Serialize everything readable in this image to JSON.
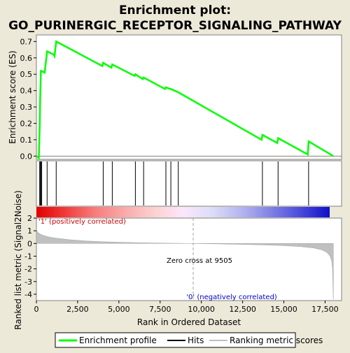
{
  "title_line1": "Enrichment plot:",
  "title_line2": "GO_PURINERGIC_RECEPTOR_SIGNALING_PATHWAY",
  "colors": {
    "background": "#ece9d8",
    "enrichment_line": "#00ff00",
    "hits": "#000000",
    "metric_fill": "#c0c0c0",
    "pos_label": "#cc0000",
    "neg_label": "#0000cc"
  },
  "chart_data": [
    {
      "type": "line",
      "name": "enrichment-profile",
      "ylabel": "Enrichment score (ES)",
      "ylim": [
        -0.02,
        0.74
      ],
      "xlim": [
        0,
        18500
      ],
      "yticks": [
        "0.0",
        "0.1",
        "0.2",
        "0.3",
        "0.4",
        "0.5",
        "0.6",
        "0.7"
      ],
      "ytick_values": [
        0.0,
        0.1,
        0.2,
        0.3,
        0.4,
        0.5,
        0.6,
        0.7
      ],
      "grid": false,
      "x": [
        0,
        150,
        200,
        230,
        270,
        320,
        500,
        650,
        1050,
        1100,
        1200,
        4000,
        4050,
        4550,
        4600,
        5950,
        6000,
        6450,
        6500,
        7800,
        7850,
        8100,
        8150,
        8600,
        13650,
        13700,
        14600,
        14650,
        16450,
        16500,
        18000
      ],
      "values": [
        0.0,
        -0.01,
        0.18,
        0.35,
        0.52,
        0.52,
        0.51,
        0.64,
        0.62,
        0.61,
        0.7,
        0.55,
        0.57,
        0.54,
        0.56,
        0.49,
        0.5,
        0.47,
        0.48,
        0.41,
        0.42,
        0.41,
        0.41,
        0.39,
        0.1,
        0.13,
        0.08,
        0.11,
        0.01,
        0.09,
        0.0
      ]
    },
    {
      "type": "hits",
      "name": "hits",
      "x": [
        200,
        230,
        270,
        320,
        650,
        1200,
        4050,
        4600,
        6000,
        6500,
        7850,
        8150,
        8600,
        13700,
        14650,
        16500
      ]
    },
    {
      "type": "area",
      "name": "ranking-metric-scores",
      "xlabel": "Rank in Ordered Dataset",
      "ylabel": "Ranked list metric (Signal2Noise)",
      "xlim": [
        0,
        18500
      ],
      "ylim": [
        -4.5,
        2.0
      ],
      "xticks": [
        "0",
        "2,500",
        "5,000",
        "7,500",
        "10,000",
        "12,500",
        "15,000",
        "17,500"
      ],
      "xtick_values": [
        0,
        2500,
        5000,
        7500,
        10000,
        12500,
        15000,
        17500
      ],
      "yticks": [
        "2",
        "1",
        "0",
        "-1",
        "-2",
        "-3",
        "-4"
      ],
      "ytick_values": [
        2,
        1,
        0,
        -1,
        -2,
        -3,
        -4
      ],
      "x": [
        0,
        50,
        150,
        300,
        500,
        800,
        1200,
        2000,
        3000,
        4000,
        5000,
        6500,
        8000,
        9505,
        11000,
        12500,
        14000,
        15000,
        16000,
        16800,
        17300,
        17600,
        17800,
        17900,
        17950,
        18000
      ],
      "values": [
        1.1,
        0.95,
        0.8,
        0.7,
        0.6,
        0.5,
        0.42,
        0.3,
        0.2,
        0.14,
        0.1,
        0.05,
        0.02,
        0.0,
        -0.03,
        -0.07,
        -0.12,
        -0.17,
        -0.25,
        -0.35,
        -0.5,
        -0.7,
        -1.0,
        -1.4,
        -2.0,
        -4.4
      ]
    }
  ],
  "zero_cross": {
    "rank": 9505,
    "label": "Zero cross at 9505"
  },
  "pos_label": "'1' (positively correlated)",
  "neg_label": "'0' (negatively correlated)",
  "legend": {
    "items": [
      {
        "label": "Enrichment profile",
        "color": "#00ff00",
        "kind": "line"
      },
      {
        "label": "Hits",
        "color": "#000000",
        "kind": "line"
      },
      {
        "label": "Ranking metric scores",
        "color": "#c0c0c0",
        "kind": "line"
      }
    ]
  },
  "heatbar_stops": [
    "#e00000",
    "#f23c3c",
    "#f77c7c",
    "#faaaaa",
    "#fcd0d0",
    "#fce6fc",
    "#dcdcf8",
    "#b4b4f0",
    "#8080e6",
    "#4a4adc",
    "#1010c8"
  ]
}
